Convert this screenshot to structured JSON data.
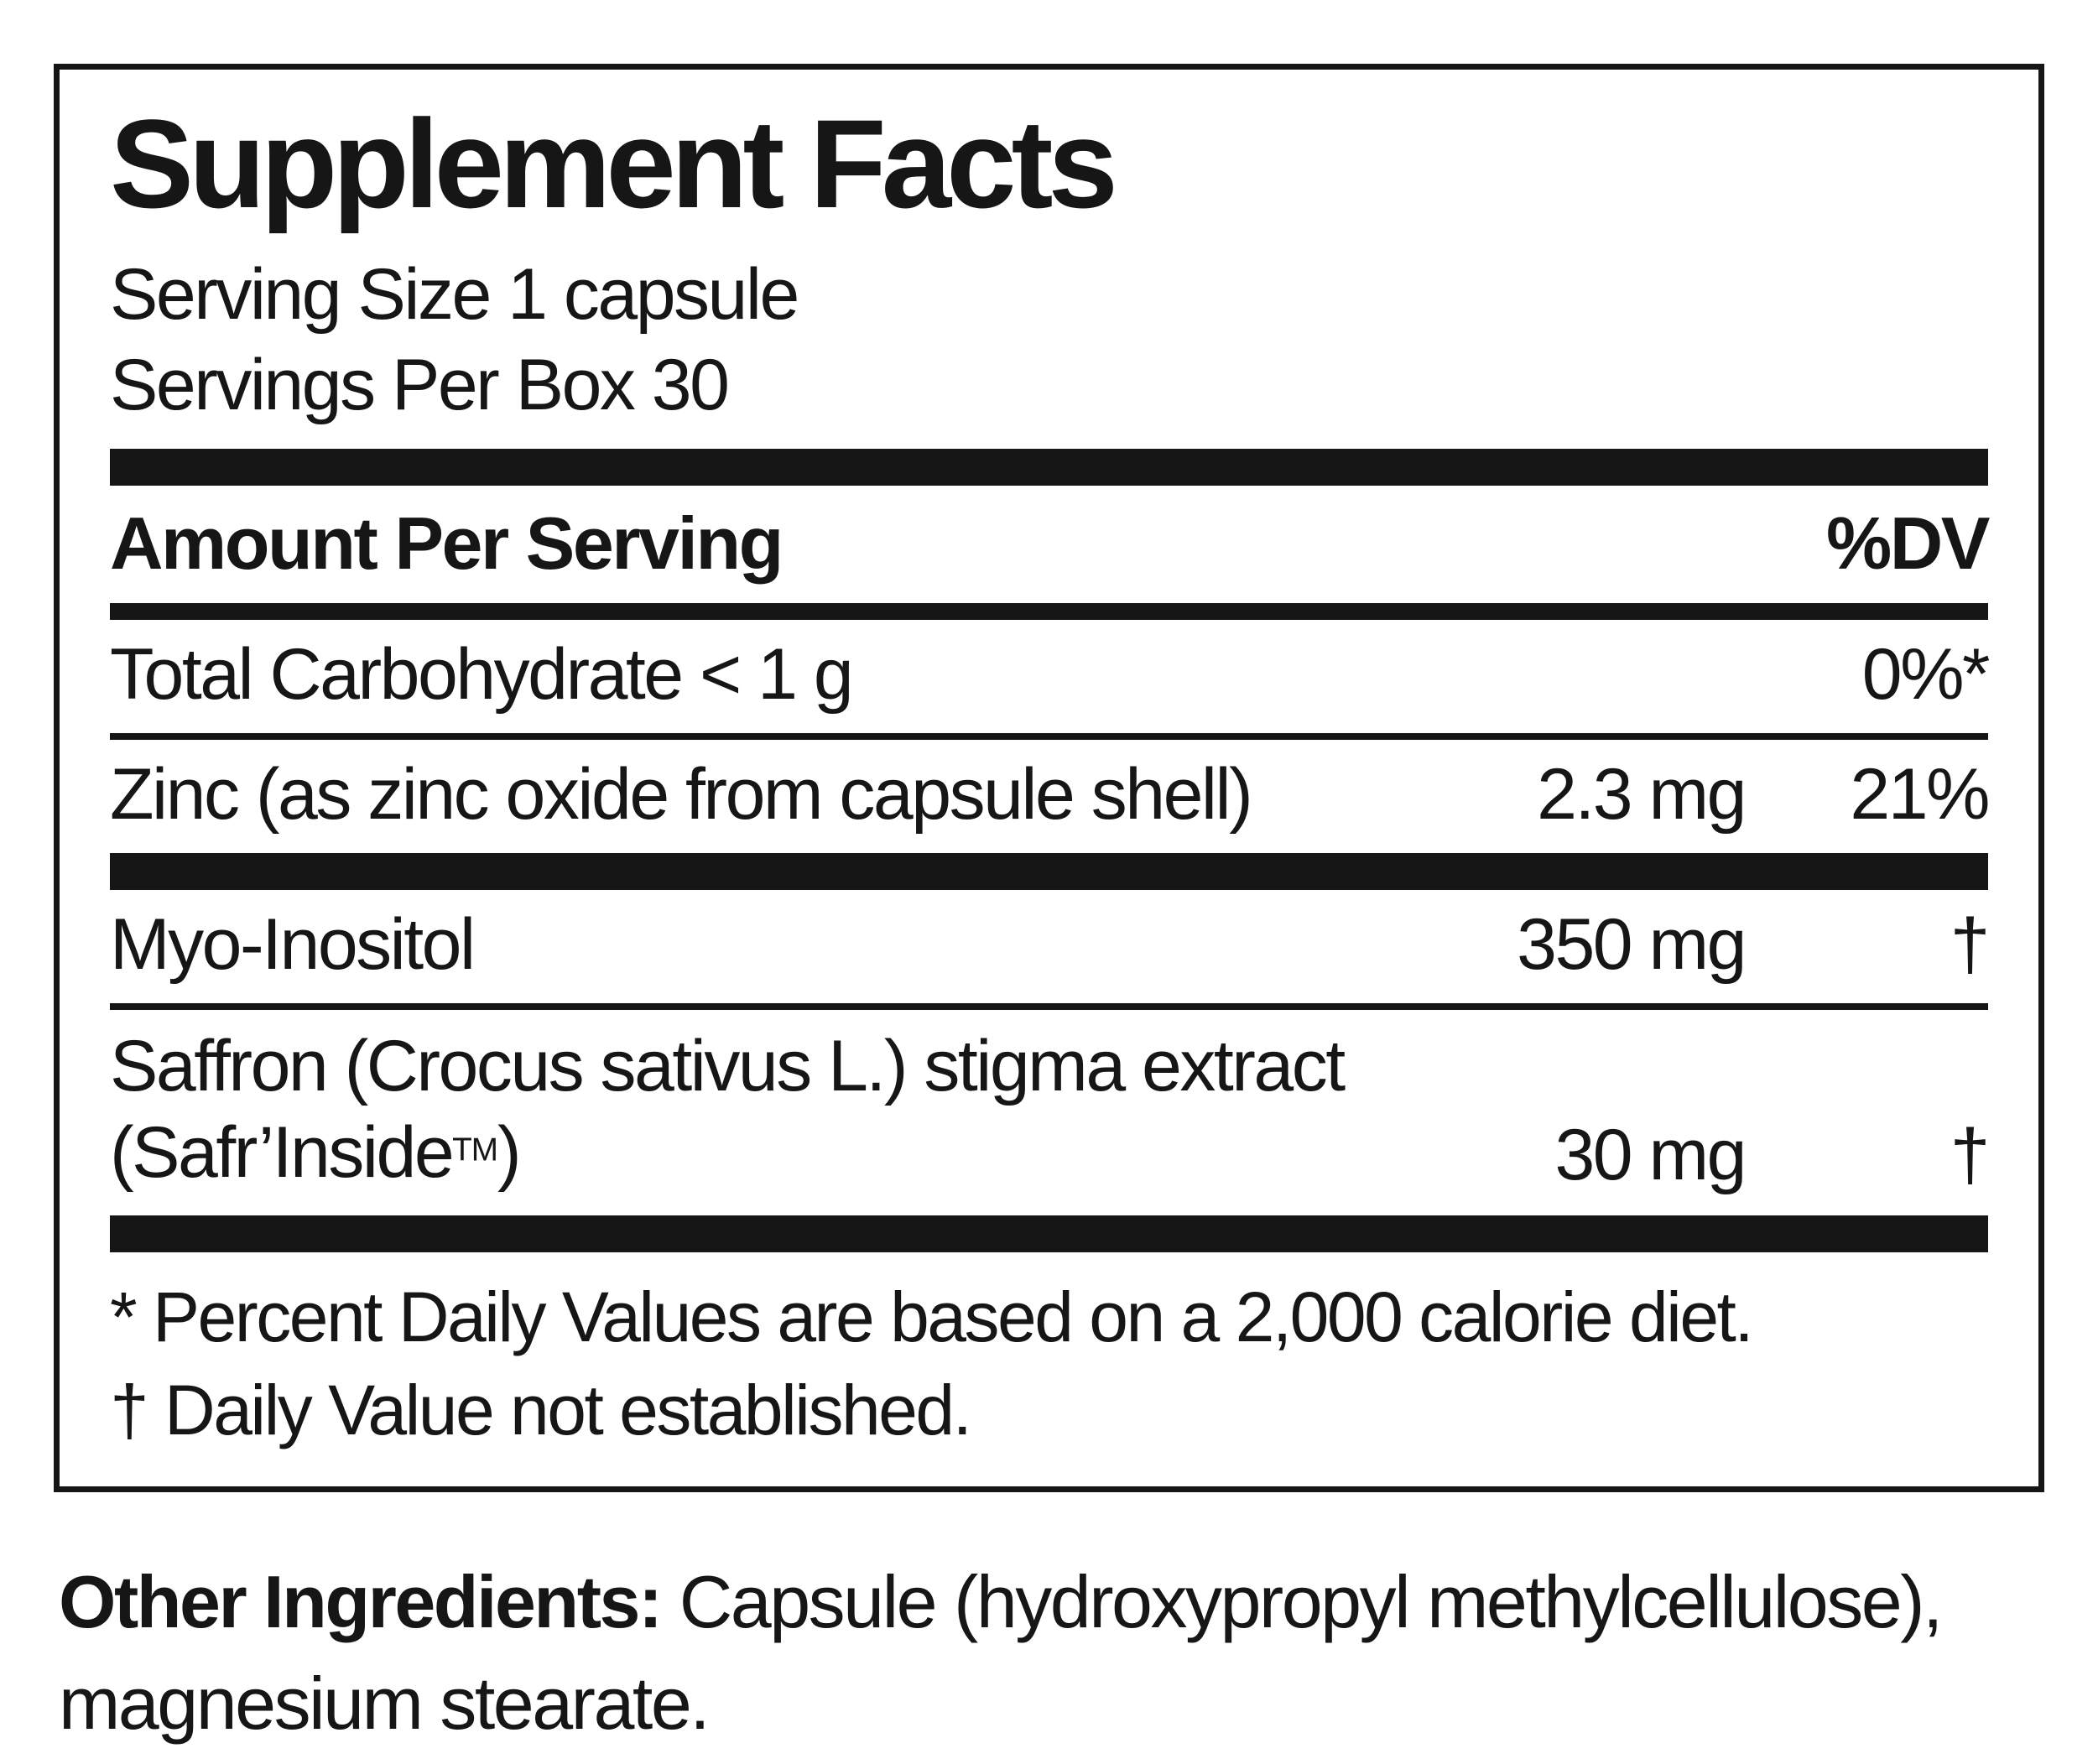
{
  "panel": {
    "title": "Supplement Facts",
    "serving_size": "Serving Size 1 capsule",
    "servings_per_box": "Servings Per Box 30",
    "columns": {
      "amount": "Amount Per Serving",
      "dv": "%DV"
    },
    "rows": [
      {
        "name": "Total Carbohydrate < 1 g",
        "amount": "",
        "dv": "0%*"
      },
      {
        "name": "Zinc (as zinc oxide from capsule shell)",
        "amount": "2.3 mg",
        "dv": "21%"
      },
      {
        "name": "Myo-Inositol",
        "amount": "350 mg",
        "dv": "†"
      },
      {
        "name_line1": "Saffron (Crocus sativus L.) stigma extract",
        "name_line2_pre": "(Safr’Inside",
        "name_line2_tm": "TM",
        "name_line2_post": ")",
        "amount": "30 mg",
        "dv": "†"
      }
    ],
    "footnotes": [
      "* Percent Daily Values are based on a 2,000 calorie diet.",
      "† Daily Value not established."
    ]
  },
  "other_ingredients": {
    "label": "Other Ingredients:",
    "line1": "Capsule (hydroxypropyl methylcellulose),",
    "line2": "magnesium stearate."
  }
}
